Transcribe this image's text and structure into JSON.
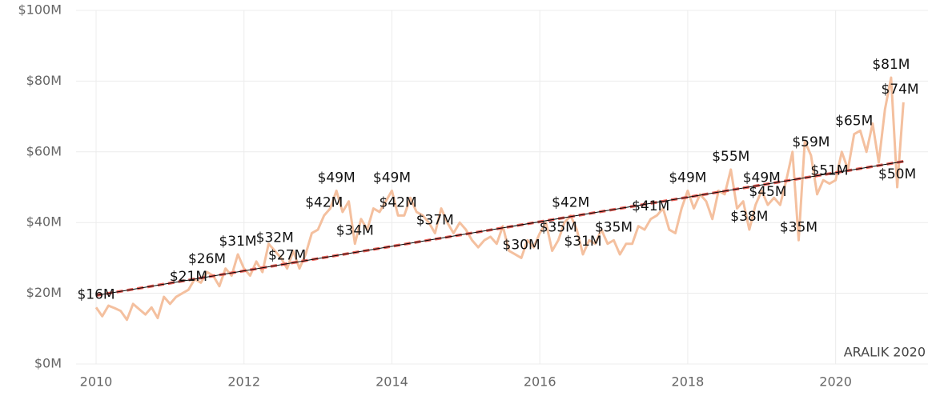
{
  "chart_data": {
    "type": "line",
    "annotation": "ARALIK 2020",
    "x": [
      2010,
      2010.083,
      2010.167,
      2010.25,
      2010.333,
      2010.417,
      2010.5,
      2010.583,
      2010.667,
      2010.75,
      2010.833,
      2010.917,
      2011,
      2011.083,
      2011.167,
      2011.25,
      2011.333,
      2011.417,
      2011.5,
      2011.583,
      2011.667,
      2011.75,
      2011.833,
      2011.917,
      2012,
      2012.083,
      2012.167,
      2012.25,
      2012.333,
      2012.417,
      2012.5,
      2012.583,
      2012.667,
      2012.75,
      2012.833,
      2012.917,
      2013,
      2013.083,
      2013.167,
      2013.25,
      2013.333,
      2013.417,
      2013.5,
      2013.583,
      2013.667,
      2013.75,
      2013.833,
      2013.917,
      2014,
      2014.083,
      2014.167,
      2014.25,
      2014.333,
      2014.417,
      2014.5,
      2014.583,
      2014.667,
      2014.75,
      2014.833,
      2014.917,
      2015,
      2015.083,
      2015.167,
      2015.25,
      2015.333,
      2015.417,
      2015.5,
      2015.583,
      2015.667,
      2015.75,
      2015.833,
      2015.917,
      2016,
      2016.083,
      2016.167,
      2016.25,
      2016.333,
      2016.417,
      2016.5,
      2016.583,
      2016.667,
      2016.75,
      2016.833,
      2016.917,
      2017,
      2017.083,
      2017.167,
      2017.25,
      2017.333,
      2017.417,
      2017.5,
      2017.583,
      2017.667,
      2017.75,
      2017.833,
      2017.917,
      2018,
      2018.083,
      2018.167,
      2018.25,
      2018.333,
      2018.417,
      2018.5,
      2018.583,
      2018.667,
      2018.75,
      2018.833,
      2018.917,
      2019,
      2019.083,
      2019.167,
      2019.25,
      2019.333,
      2019.417,
      2019.5,
      2019.583,
      2019.667,
      2019.75,
      2019.833,
      2019.917,
      2020,
      2020.083,
      2020.167,
      2020.25,
      2020.333,
      2020.417,
      2020.5,
      2020.583,
      2020.667,
      2020.75,
      2020.833,
      2020.917
    ],
    "series": [
      {
        "color": "#f4c09f",
        "values": [
          16,
          13.5,
          16.5,
          15.8,
          15,
          12.5,
          17,
          15.5,
          14,
          16,
          13,
          19,
          17,
          19,
          20,
          21,
          24,
          23,
          26,
          25,
          22,
          27,
          25,
          31,
          27,
          25,
          29,
          26,
          34,
          32,
          30,
          27,
          32,
          27,
          31,
          37,
          38,
          42,
          44,
          49,
          43,
          46,
          34,
          41,
          38,
          44,
          43,
          46,
          49,
          42,
          42,
          47,
          43,
          42,
          40,
          37,
          44,
          40,
          37,
          40,
          38,
          35,
          33,
          35,
          36,
          34,
          39,
          32,
          31,
          30,
          35,
          33,
          37,
          40,
          32,
          35,
          40,
          42,
          38,
          31,
          35,
          34,
          38,
          34,
          35,
          31,
          34,
          34,
          39,
          38,
          41,
          42,
          44,
          38,
          37,
          44,
          49,
          44,
          48,
          46,
          41,
          49,
          48,
          55,
          44,
          46,
          38,
          45,
          49,
          45,
          47,
          45,
          52,
          60,
          35,
          63,
          59,
          48,
          52,
          51,
          52,
          60,
          55,
          65,
          66,
          60,
          68,
          57,
          72,
          81,
          50,
          74
        ],
        "value_labels": [
          "$16M",
          null,
          null,
          null,
          null,
          null,
          null,
          null,
          null,
          null,
          null,
          null,
          null,
          null,
          null,
          "$21M",
          null,
          null,
          "$26M",
          null,
          null,
          null,
          null,
          "$31M",
          null,
          null,
          null,
          null,
          null,
          "$32M",
          null,
          "$27M",
          null,
          null,
          null,
          null,
          null,
          "$42M",
          null,
          "$49M",
          null,
          null,
          "$34M",
          null,
          null,
          null,
          null,
          null,
          "$49M",
          "$42M",
          null,
          null,
          null,
          null,
          null,
          "$37M",
          null,
          null,
          null,
          null,
          null,
          null,
          null,
          null,
          null,
          null,
          null,
          null,
          null,
          "$30M",
          null,
          null,
          null,
          null,
          null,
          "$35M",
          null,
          "$42M",
          null,
          "$31M",
          null,
          null,
          null,
          null,
          "$35M",
          null,
          null,
          null,
          null,
          null,
          "$41M",
          null,
          null,
          null,
          null,
          null,
          "$49M",
          null,
          null,
          null,
          null,
          null,
          null,
          "$55M",
          null,
          null,
          "$38M",
          null,
          "$49M",
          "$45M",
          null,
          null,
          null,
          null,
          "$35M",
          null,
          "$59M",
          null,
          null,
          "$51M",
          null,
          null,
          null,
          "$65M",
          null,
          null,
          null,
          null,
          null,
          "$81M",
          "$50M",
          "$74M"
        ]
      }
    ],
    "trendline": {
      "color": "#e8625a",
      "values": [
        19.4,
        57.3
      ]
    },
    "xlim": [
      2010,
      2021
    ],
    "xticks": [
      2010,
      2012,
      2014,
      2016,
      2018,
      2020
    ],
    "ylim": [
      0,
      100
    ],
    "yticks": [
      {
        "value": 0,
        "label": "$0M"
      },
      {
        "value": 20,
        "label": "$20M"
      },
      {
        "value": 40,
        "label": "$40M"
      },
      {
        "value": 60,
        "label": "$60M"
      },
      {
        "value": 80,
        "label": "$80M"
      },
      {
        "value": 100,
        "label": "$100M"
      }
    ],
    "grid": true
  }
}
